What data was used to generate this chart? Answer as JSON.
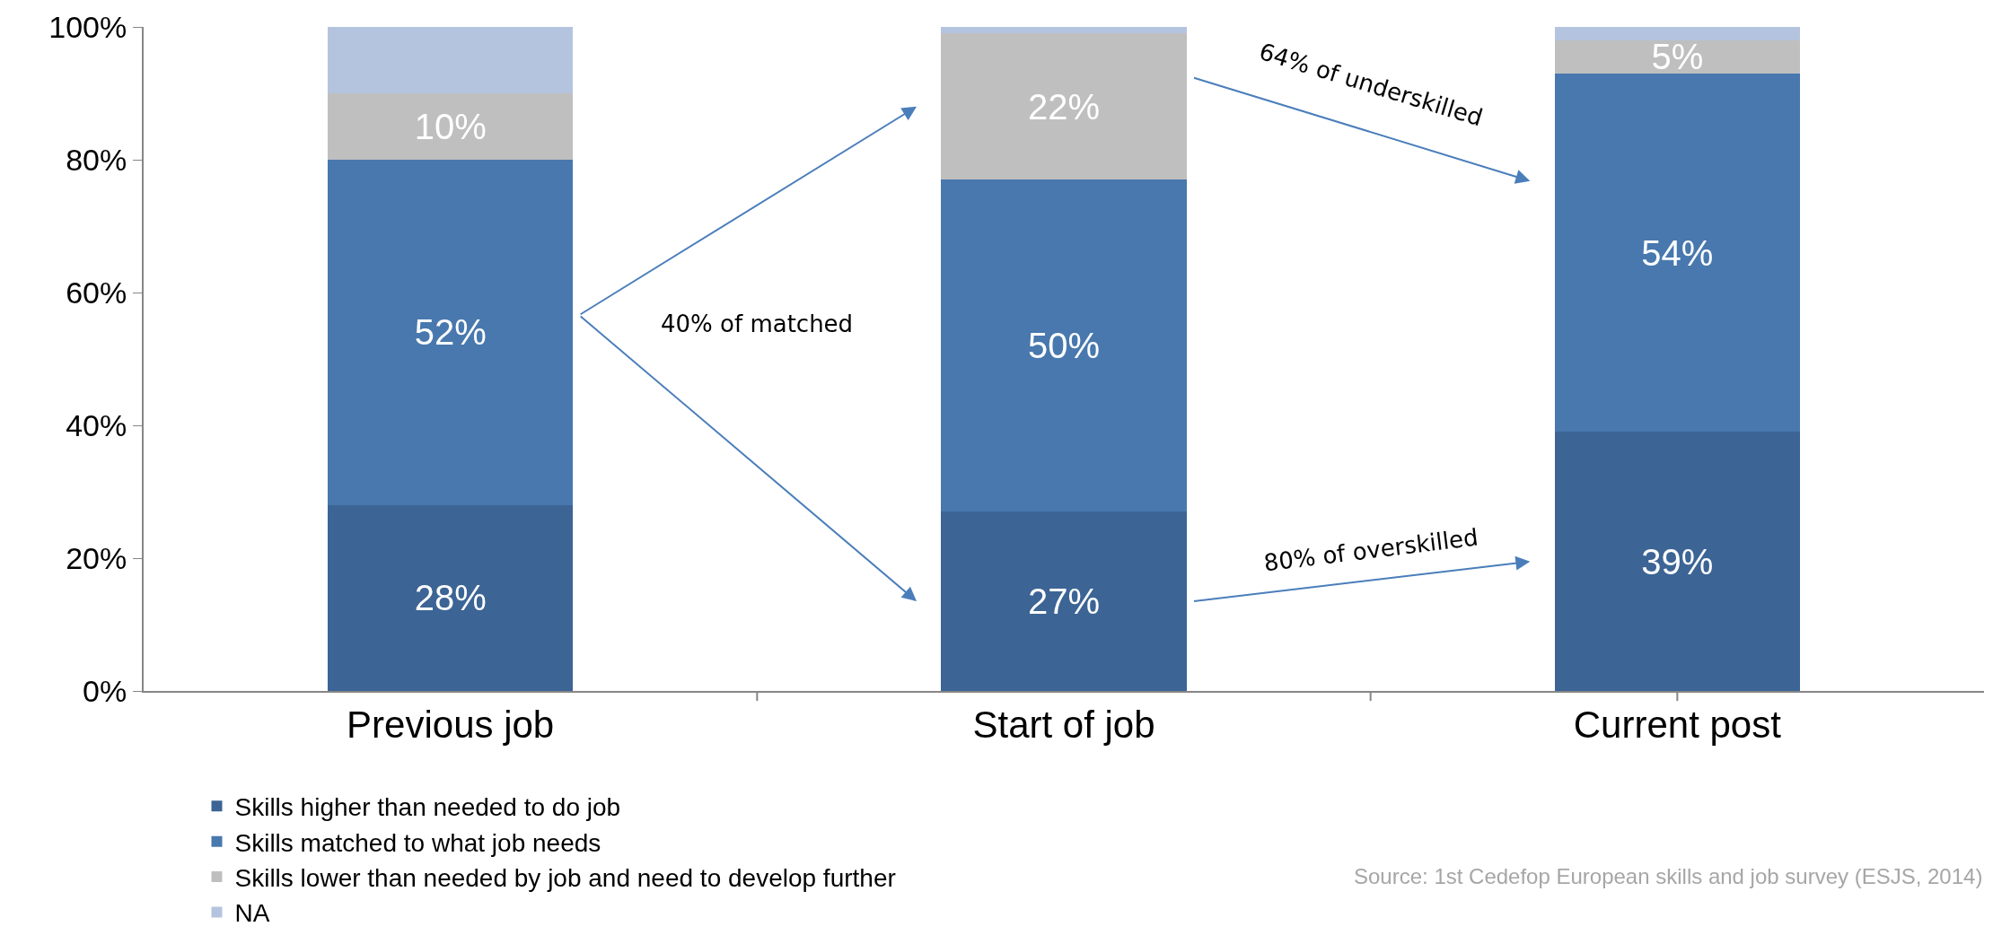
{
  "chart_data": {
    "type": "bar",
    "stacked": true,
    "categories": [
      "Previous job",
      "Start of job",
      "Current post"
    ],
    "series": [
      {
        "name": "Skills higher than needed to do job",
        "color": "#3c6495",
        "values": [
          28,
          27,
          39
        ],
        "value_labels": [
          "28%",
          "27%",
          "39%"
        ]
      },
      {
        "name": "Skills matched to what job needs",
        "color": "#4878ae",
        "values": [
          52,
          50,
          54
        ],
        "value_labels": [
          "52%",
          "50%",
          "54%"
        ]
      },
      {
        "name": "Skills lower than needed by job and need to develop further",
        "color": "#bfbfbf",
        "values": [
          10,
          22,
          5
        ],
        "value_labels": [
          "10%",
          "22%",
          "5%"
        ]
      },
      {
        "name": "NA",
        "color": "#b5c4de",
        "values": [
          10,
          1,
          2
        ]
      }
    ],
    "ylim": [
      0,
      100
    ],
    "yticks": [
      {
        "value": 0,
        "label": "0%"
      },
      {
        "value": 20,
        "label": "20%"
      },
      {
        "value": 40,
        "label": "40%"
      },
      {
        "value": 60,
        "label": "60%"
      },
      {
        "value": 80,
        "label": "80%"
      },
      {
        "value": 100,
        "label": "100%"
      }
    ],
    "grid": false,
    "legend": "bottom left",
    "annotations": [
      "40% of matched",
      "64% of underskilled",
      "80% of overskilled",
      "Source: 1st Cedefop European skills and job survey (ESJS, 2014)"
    ]
  }
}
